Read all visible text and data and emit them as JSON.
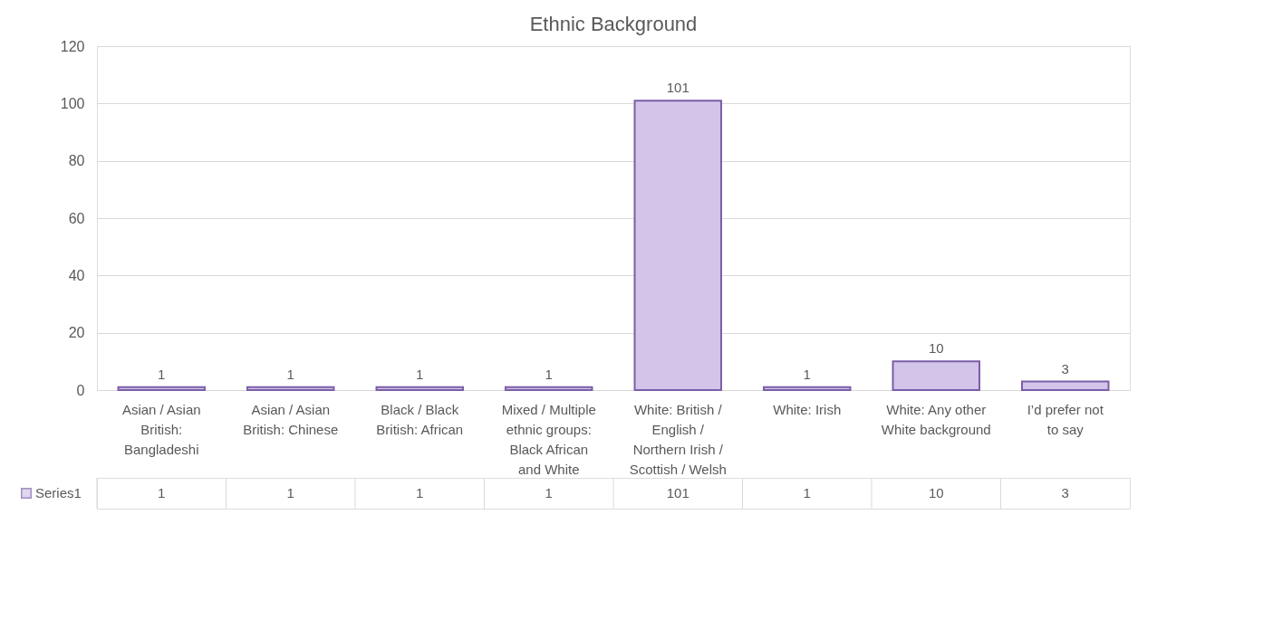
{
  "chart_data": {
    "type": "bar",
    "title": "Ethnic Background",
    "categories": [
      "Asian / Asian British: Bangladeshi",
      "Asian / Asian British: Chinese",
      "Black / Black British: African",
      "Mixed / Multiple ethnic groups: Black African and White",
      "White: British / English / Northern Irish / Scottish / Welsh",
      "White: Irish",
      "White: Any other White background",
      "I’d prefer not to say"
    ],
    "series": [
      {
        "name": "Series1",
        "color": "#d3c5ea",
        "values": [
          1,
          1,
          1,
          1,
          101,
          1,
          10,
          3
        ],
        "value_labels": [
          "1",
          "1",
          "1",
          "1",
          "101",
          "1",
          "10",
          "3"
        ]
      }
    ],
    "ylim": [
      0,
      120
    ],
    "yticks": [
      0,
      20,
      40,
      60,
      80,
      100,
      120
    ],
    "grid": "y",
    "data_labels": true,
    "legend": "bottom"
  }
}
